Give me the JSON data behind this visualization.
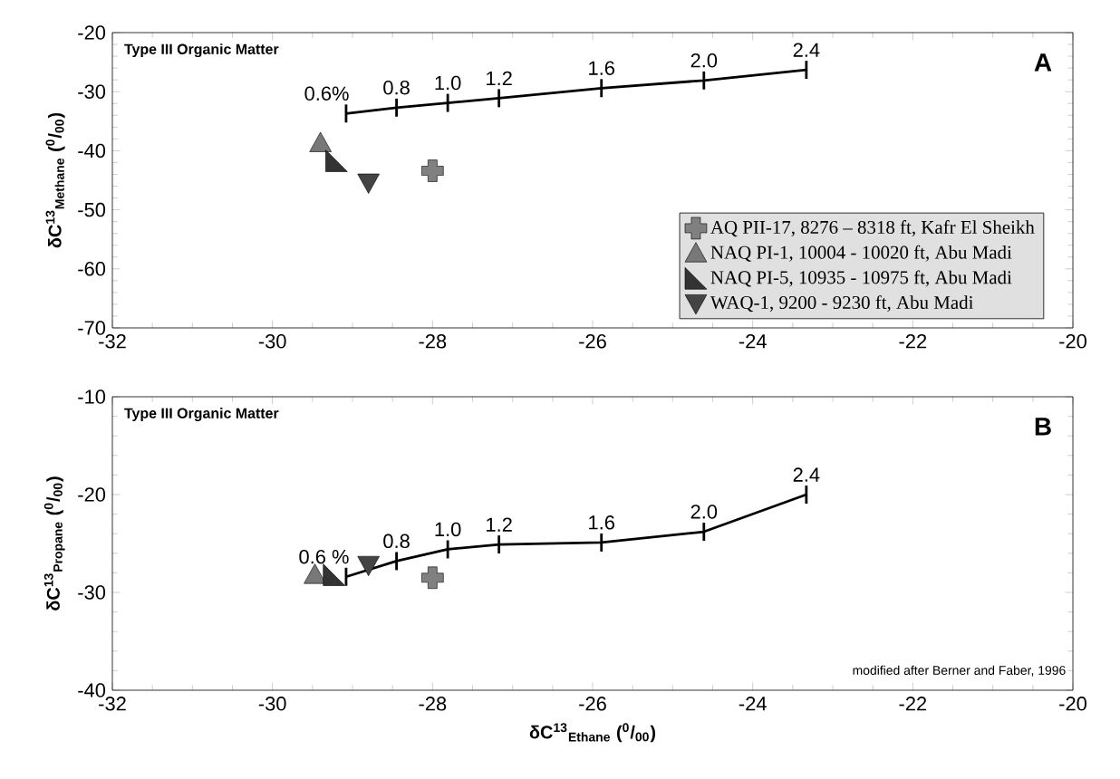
{
  "chart_data": [
    {
      "type": "scatter",
      "title": "A",
      "ylabel": "δC$^{13}$$_{Methane}$ ($^{0}$/$_{00}$)",
      "xlim": [
        -32,
        -20
      ],
      "ylim": [
        -70,
        -20
      ],
      "xticks": [
        -32,
        -30,
        -28,
        -26,
        -24,
        -22,
        -20
      ],
      "yticks": [
        -70,
        -60,
        -50,
        -40,
        -30,
        -20
      ],
      "legend": "bottom right",
      "annotations": [
        "Type III Organic Matter",
        {
          "text": "0.6%",
          "x": -29.08,
          "y": -33.7
        },
        {
          "text": "0.8",
          "x": -28.45,
          "y": -32.7
        },
        {
          "text": "1.0",
          "x": -27.81,
          "y": -31.9
        },
        {
          "text": "1.2",
          "x": -27.17,
          "y": -31.1
        },
        {
          "text": "1.6",
          "x": -25.89,
          "y": -29.4
        },
        {
          "text": "2.0",
          "x": -24.61,
          "y": -28.1
        },
        {
          "text": "2.4",
          "x": -23.33,
          "y": -26.3
        }
      ],
      "series": [
        {
          "type": "line",
          "color": "#000000",
          "x": [
            -29.08,
            -28.45,
            -27.81,
            -27.17,
            -25.89,
            -24.61,
            -23.33
          ],
          "values": [
            -33.7,
            -32.7,
            -31.9,
            -31.1,
            -29.4,
            -28.1,
            -26.3
          ]
        },
        {
          "name": "AQ PII-17, 8276 – 8318 ft, Kafr El Sheikh",
          "color": "#808080",
          "marker": "cross",
          "x": [
            -28.0
          ],
          "values": [
            -43.4
          ]
        },
        {
          "name": "NAQ PI-1, 10004 - 10020 ft, Abu Madi",
          "color": "#787878",
          "marker": "triangle",
          "x": [
            -29.4
          ],
          "values": [
            -38.7
          ]
        },
        {
          "name": "NAQ PI-5, 10935 - 10975 ft, Abu Madi",
          "color": "#333333",
          "marker": "triangle",
          "x": [
            -29.2
          ],
          "values": [
            -41.7
          ]
        },
        {
          "name": "WAQ-1, 9200 - 9230 ft, Abu Madi",
          "color": "#444444",
          "marker": "triangle",
          "x": [
            -28.8
          ],
          "values": [
            -45.4
          ]
        }
      ]
    },
    {
      "type": "scatter",
      "title": "B",
      "xlabel": "δC$^{13}$$_{Ethane}$ ($^{0}$/$_{00}$)",
      "ylabel": "δC$^{13}$$_{Propane}$ ($^{0}$/$_{00}$)",
      "xlim": [
        -32,
        -20
      ],
      "ylim": [
        -40,
        -10
      ],
      "xticks": [
        -32,
        -30,
        -28,
        -26,
        -24,
        -22,
        -20
      ],
      "yticks": [
        -40,
        -30,
        -20,
        -10
      ],
      "annotations": [
        "Type III Organic Matter",
        "modified after Berner and Faber, 1996",
        {
          "text": "0.6 %",
          "x": -29.08,
          "y": -28.4
        },
        {
          "text": "0.8",
          "x": -28.45,
          "y": -26.8
        },
        {
          "text": "1.0",
          "x": -27.81,
          "y": -25.6
        },
        {
          "text": "1.2",
          "x": -27.17,
          "y": -25.1
        },
        {
          "text": "1.6",
          "x": -25.89,
          "y": -24.9
        },
        {
          "text": "2.0",
          "x": -24.61,
          "y": -23.8
        },
        {
          "text": "2.4",
          "x": -23.33,
          "y": -20.0
        }
      ],
      "series": [
        {
          "type": "line",
          "color": "#000000",
          "x": [
            -29.08,
            -28.45,
            -27.81,
            -27.17,
            -25.89,
            -24.61,
            -23.33
          ],
          "values": [
            -28.4,
            -26.8,
            -25.6,
            -25.1,
            -24.9,
            -23.8,
            -20.0
          ]
        },
        {
          "color": "#808080",
          "marker": "cross",
          "x": [
            -28.0
          ],
          "values": [
            -28.5
          ]
        },
        {
          "color": "#787878",
          "marker": "triangle",
          "x": [
            -29.47
          ],
          "values": [
            -28.2
          ]
        },
        {
          "color": "#333333",
          "marker": "triangle",
          "x": [
            -29.23
          ],
          "values": [
            -28.2
          ]
        },
        {
          "color": "#444444",
          "marker": "triangle",
          "x": [
            -28.8
          ],
          "values": [
            -27.2
          ]
        }
      ]
    }
  ]
}
